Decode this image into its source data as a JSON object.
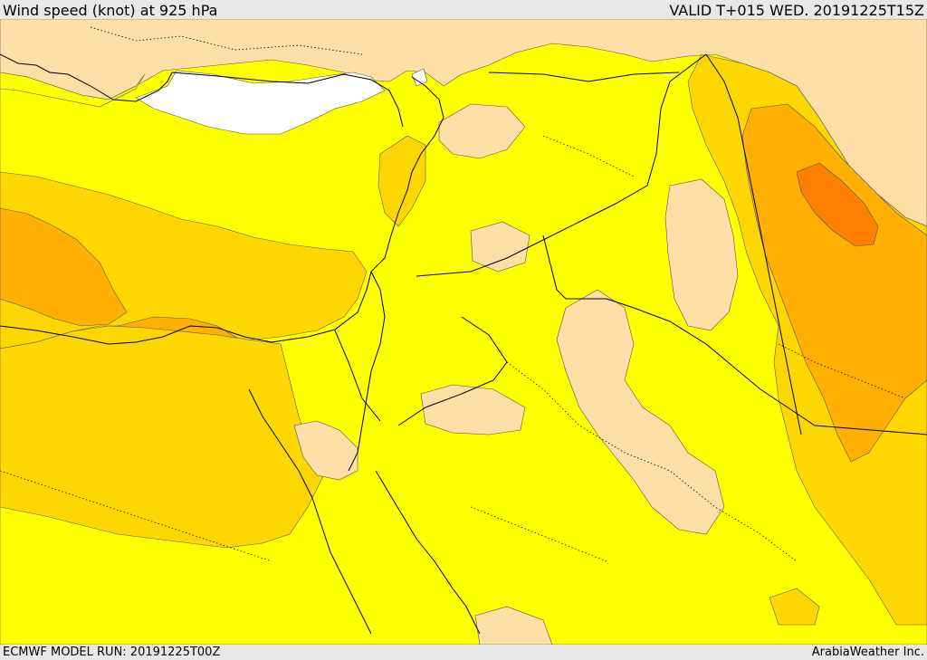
{
  "header": {
    "title": "Wind speed (knot) at 925 hPa",
    "valid": "VALID T+015 WED. 20191225T15Z"
  },
  "footer": {
    "model_run": "ECMWF MODEL RUN: 20191225T00Z",
    "credit": "ArabiaWeather Inc."
  },
  "colors": {
    "band_calm": "#ffffff",
    "band_light": "#ffdfa8",
    "band_moderate": "#ffff00",
    "band_fresh": "#ffd700",
    "band_strong": "#ffb000",
    "band_very_strong": "#ff8000",
    "boundary": "#000000"
  }
}
